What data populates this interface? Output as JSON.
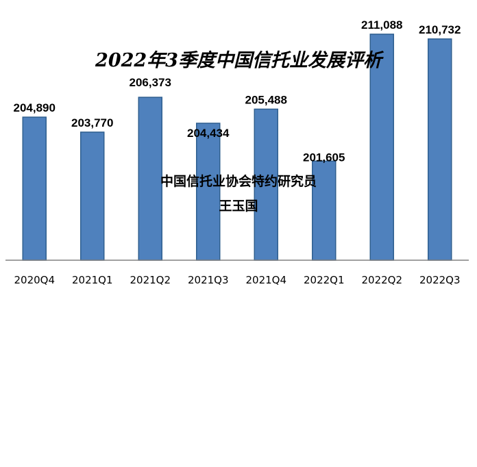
{
  "chart_data": {
    "type": "bar",
    "title": "2022年3季度中国信托业发展评析",
    "xlabel": "",
    "ylabel": "",
    "categories": [
      "2020Q4",
      "2021Q1",
      "2021Q2",
      "2021Q3",
      "2021Q4",
      "2022Q1",
      "2022Q2",
      "2022Q3"
    ],
    "values": [
      204890,
      203770,
      206373,
      204434,
      205488,
      201605,
      211088,
      210732
    ],
    "data_labels": [
      "204,890",
      "203,770",
      "206,373",
      "204,434",
      "205,488",
      "201,605",
      "211,088",
      "210,732"
    ],
    "ylim": [
      194200,
      211800
    ],
    "grid": false,
    "legend": "none",
    "bar_color": "#4F81BD",
    "annotations": [
      "中国信托业协会特约研究员",
      "王玉国"
    ]
  }
}
